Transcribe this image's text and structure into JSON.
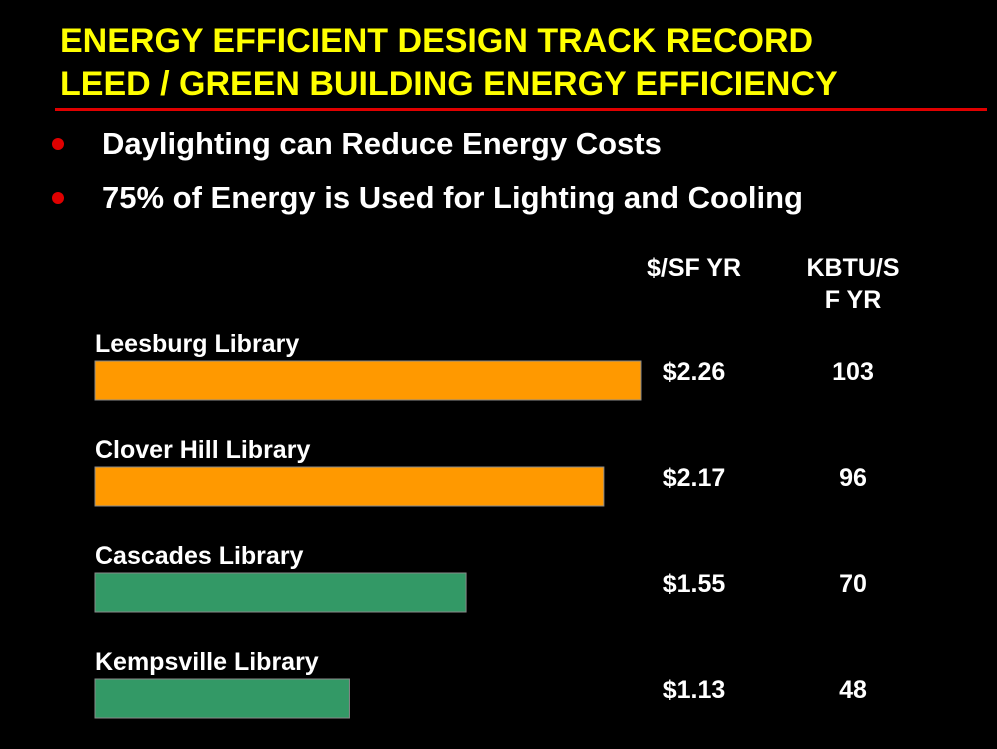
{
  "title": {
    "line1": "ENERGY EFFICIENT DESIGN TRACK RECORD",
    "line2": "LEED / GREEN BUILDING ENERGY EFFICIENCY"
  },
  "bullets": [
    "Daylighting can Reduce Energy Costs",
    "75% of Energy is Used for Lighting and Cooling"
  ],
  "colors": {
    "title": "#FFFF00",
    "rule": "#E00000",
    "orange": "#FF9900",
    "green": "#339966"
  },
  "chart_data": {
    "type": "bar",
    "orientation": "horizontal",
    "columns": [
      "$/SF YR",
      "KBTU/S\nF YR"
    ],
    "categories": [
      "Leesburg Library",
      "Clover Hill Library",
      "Cascades Library",
      "Kempsville Library"
    ],
    "cost_labels": [
      "$2.26",
      "$2.17",
      "$1.55",
      "$1.13"
    ],
    "values": [
      103,
      96,
      70,
      48
    ],
    "bar_colors": [
      "#FF9900",
      "#FF9900",
      "#339966",
      "#339966"
    ]
  }
}
